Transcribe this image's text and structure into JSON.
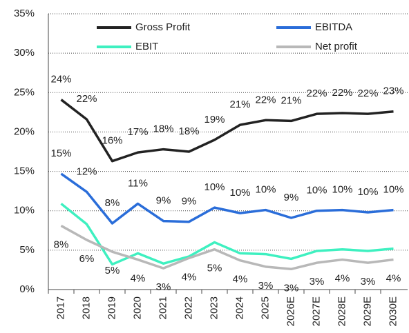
{
  "chart_data": {
    "type": "line",
    "categories": [
      "2017",
      "2018",
      "2019",
      "2020",
      "2021",
      "2022",
      "2023",
      "2024",
      "2025",
      "2026E",
      "2027E",
      "2028E",
      "2029E",
      "2030E"
    ],
    "ylim": [
      0,
      35
    ],
    "yticks": [
      {
        "value": 0,
        "label": "0%"
      },
      {
        "value": 5,
        "label": "5%"
      },
      {
        "value": 10,
        "label": "10%"
      },
      {
        "value": 15,
        "label": "15%"
      },
      {
        "value": 20,
        "label": "20%"
      },
      {
        "value": 25,
        "label": "25%"
      },
      {
        "value": 30,
        "label": "30%"
      },
      {
        "value": 35,
        "label": "35%"
      }
    ],
    "grid": true,
    "series": [
      {
        "name": "Gross Profit",
        "color": "#222222",
        "values": [
          24.1,
          21.6,
          16.3,
          17.4,
          17.8,
          17.5,
          19.0,
          20.9,
          21.5,
          21.4,
          22.3,
          22.4,
          22.3,
          22.6
        ],
        "value_labels": [
          "24%",
          "22%",
          "16%",
          "17%",
          "18%",
          "18%",
          "19%",
          "21%",
          "22%",
          "21%",
          "22%",
          "22%",
          "22%",
          "23%"
        ]
      },
      {
        "name": "EBITDA",
        "color": "#2a6dd9",
        "values": [
          14.7,
          12.4,
          8.4,
          10.9,
          8.7,
          8.6,
          10.4,
          9.7,
          10.1,
          9.1,
          10.0,
          10.1,
          9.8,
          10.1
        ],
        "value_labels": [
          "15%",
          "12%",
          "8%",
          "11%",
          "9%",
          "9%",
          "10%",
          "10%",
          "10%",
          "9%",
          "10%",
          "10%",
          "10%",
          "10%"
        ]
      },
      {
        "name": "EBIT",
        "color": "#3ef0c0",
        "values": [
          10.9,
          8.3,
          3.2,
          4.6,
          3.3,
          4.2,
          6.0,
          4.6,
          4.5,
          3.9,
          4.9,
          5.1,
          4.9,
          5.2
        ]
      },
      {
        "name": "Net profit",
        "color": "#b8b8b8",
        "values": [
          8.1,
          6.3,
          4.8,
          3.8,
          2.7,
          4.0,
          5.1,
          3.7,
          2.9,
          2.6,
          3.4,
          3.8,
          3.4,
          3.8
        ],
        "value_labels": [
          "8%",
          "6%",
          "5%",
          "4%",
          "3%",
          "4%",
          "5%",
          "4%",
          "3%",
          "3%",
          "3%",
          "4%",
          "3%",
          "4%"
        ]
      }
    ]
  }
}
